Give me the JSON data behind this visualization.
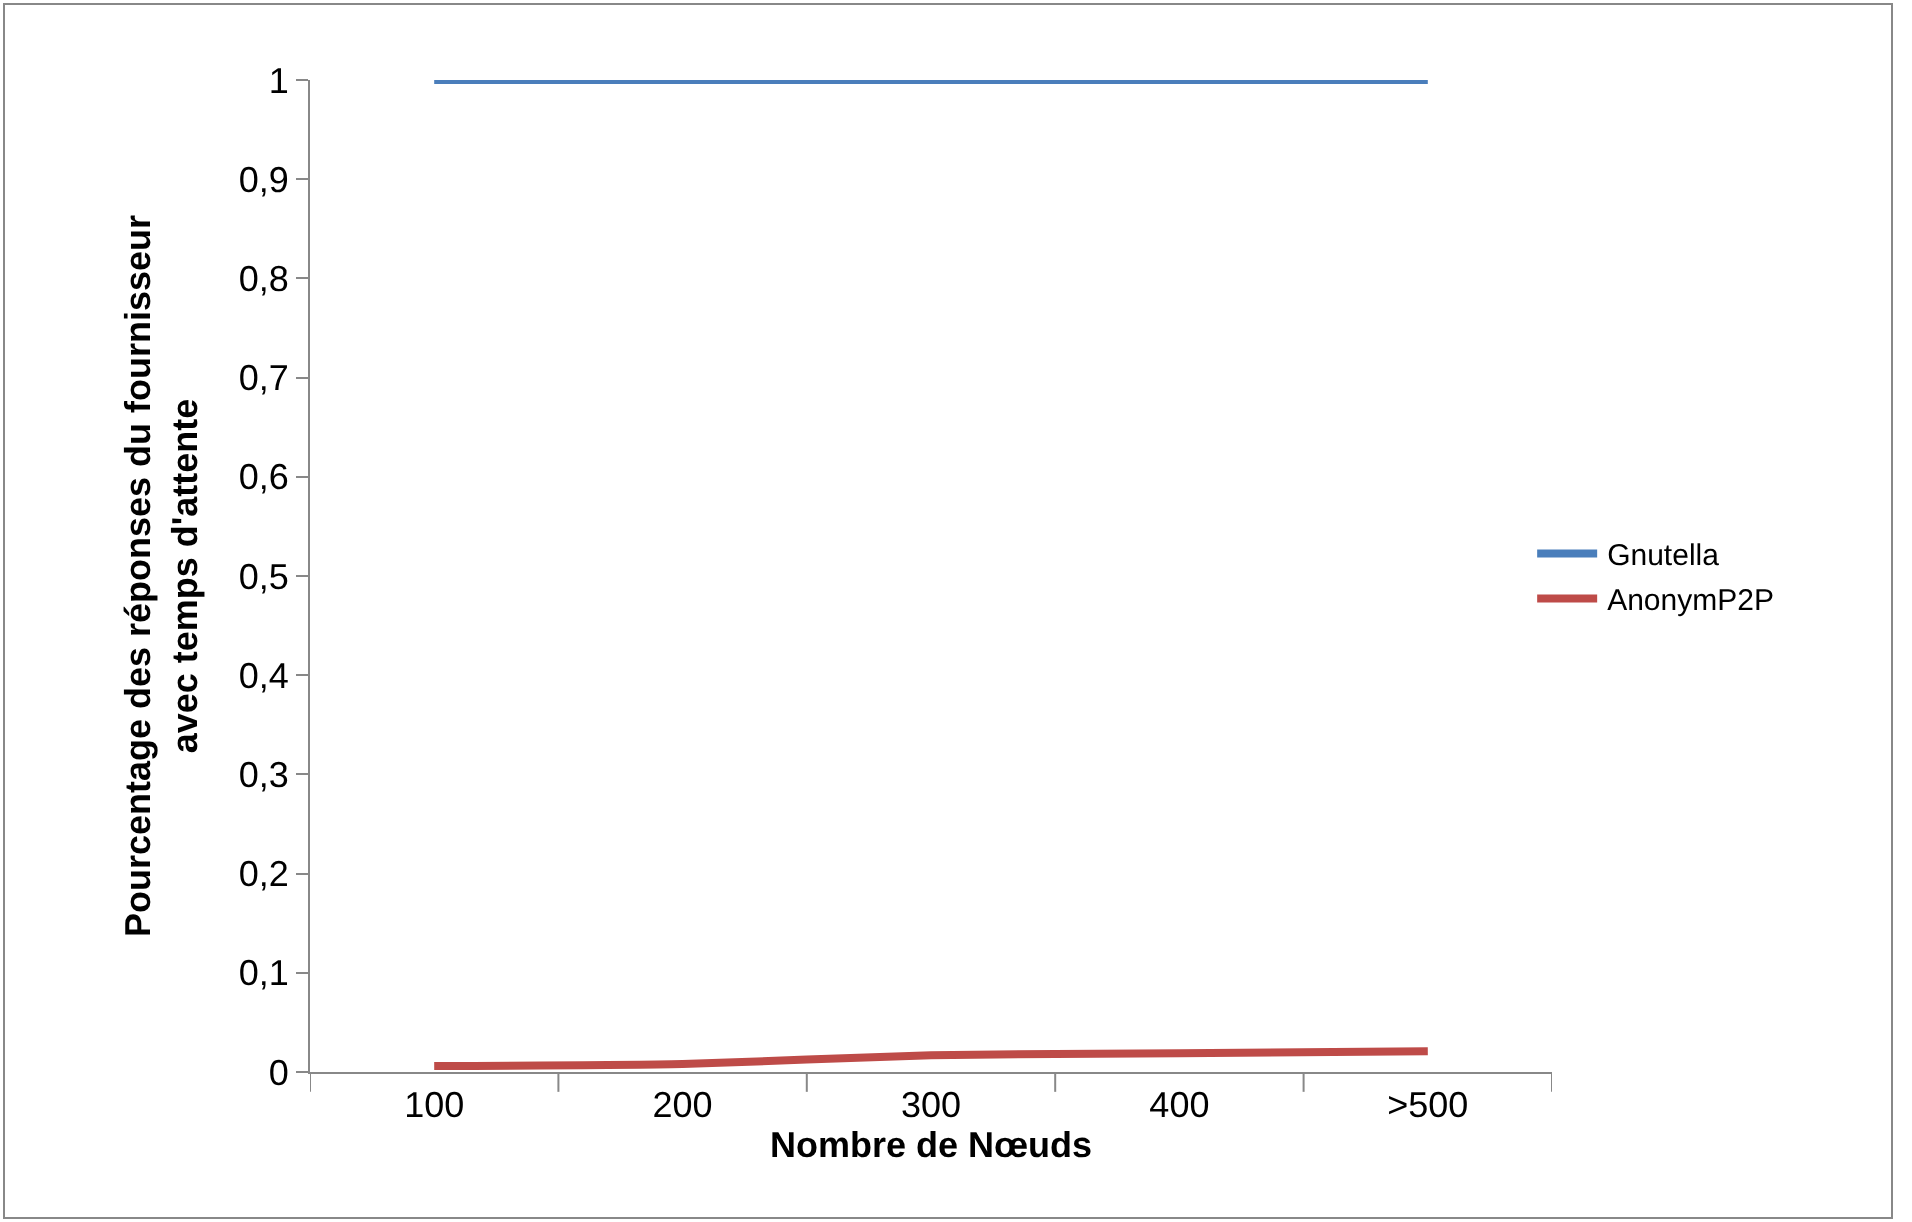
{
  "chart_data": {
    "type": "line",
    "xlabel": "Nombre de Nœuds",
    "ylabel": "Pourcentage des réponses du fournisseur\navec temps d'attente",
    "categories": [
      "100",
      "200",
      "300",
      "400",
      ">500"
    ],
    "series": [
      {
        "name": "Gnutella",
        "color": "#4a7ebb",
        "values": [
          1,
          1,
          1,
          1,
          1
        ]
      },
      {
        "name": "AnonymP2P",
        "color": "#be4b48",
        "values": [
          0.006,
          0.008,
          0.017,
          0.019,
          0.021
        ]
      }
    ],
    "ylim": [
      0,
      1
    ],
    "yticks": [
      {
        "value": 0,
        "label": "0"
      },
      {
        "value": 0.1,
        "label": "0,1"
      },
      {
        "value": 0.2,
        "label": "0,2"
      },
      {
        "value": 0.3,
        "label": "0,3"
      },
      {
        "value": 0.4,
        "label": "0,4"
      },
      {
        "value": 0.5,
        "label": "0,5"
      },
      {
        "value": 0.6,
        "label": "0,6"
      },
      {
        "value": 0.7,
        "label": "0,7"
      },
      {
        "value": 0.8,
        "label": "0,8"
      },
      {
        "value": 0.9,
        "label": "0,9"
      },
      {
        "value": 1,
        "label": "1"
      }
    ],
    "legend": "right",
    "marker": "none",
    "line_style": "solid"
  }
}
